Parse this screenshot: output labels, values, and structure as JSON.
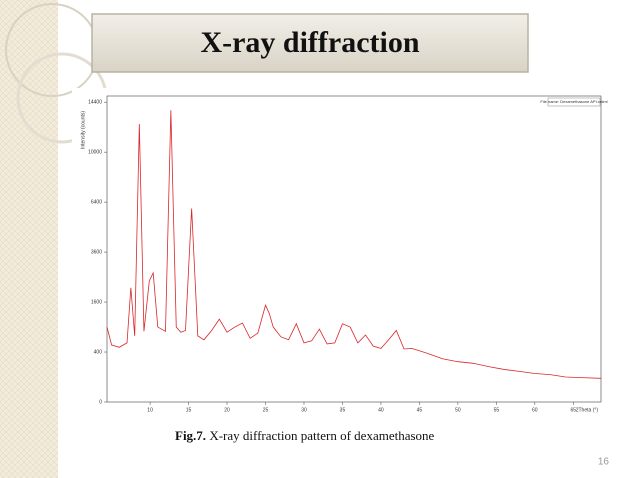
{
  "slide": {
    "title": "X-ray diffraction",
    "caption_label": "Fig.7.",
    "caption": "X-ray diffraction pattern of dexamethasone",
    "page_number": "16"
  },
  "chart_data": {
    "type": "line",
    "ylabel": "Intensity (counts)",
    "xlabel": "2Theta (°)",
    "annotation": "File name: Dexamethasone API.xrdml",
    "yscale": "sqrt",
    "xlim": [
      4.4,
      68.6
    ],
    "xticks": [
      10,
      15,
      20,
      25,
      30,
      35,
      40,
      45,
      50,
      55,
      60,
      65
    ],
    "ylim": [
      0,
      15000
    ],
    "yticks": [
      0,
      400,
      1600,
      3600,
      6400,
      10000,
      14400
    ],
    "series": [
      {
        "color": "#d9262a",
        "x": [
          4.4,
          5,
          6,
          7,
          7.5,
          8,
          8.6,
          9.2,
          9.9,
          10.4,
          11,
          12,
          12.7,
          13.4,
          14,
          14.6,
          15.4,
          16.2,
          17,
          18,
          19,
          20,
          21,
          22,
          23,
          24,
          25,
          25.5,
          26,
          27,
          28,
          29,
          30,
          31,
          32,
          33,
          34,
          35,
          36,
          37,
          38,
          39,
          40,
          41,
          42,
          43,
          44,
          45,
          46,
          48,
          50,
          52,
          54,
          56,
          58,
          60,
          62,
          64,
          66,
          68.6
        ],
        "values": [
          900,
          520,
          480,
          560,
          2090,
          700,
          12380,
          800,
          2350,
          2670,
          900,
          800,
          13640,
          900,
          780,
          820,
          6000,
          700,
          620,
          820,
          1100,
          780,
          900,
          1000,
          650,
          760,
          1500,
          1250,
          900,
          680,
          620,
          980,
          560,
          600,
          850,
          540,
          560,
          980,
          900,
          560,
          720,
          500,
          460,
          620,
          820,
          450,
          460,
          420,
          380,
          300,
          260,
          240,
          200,
          170,
          150,
          130,
          120,
          100,
          95,
          90
        ]
      }
    ]
  }
}
